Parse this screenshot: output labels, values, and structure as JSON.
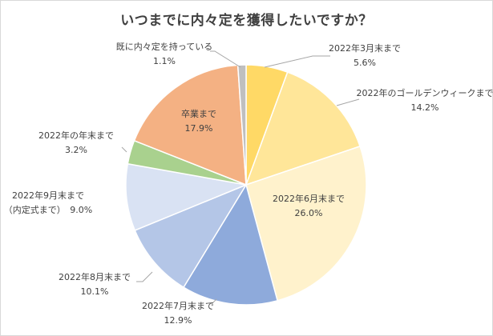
{
  "colors": {
    "text": "#404040",
    "leader": "#a6a6a6",
    "slice_edge": "#ffffff"
  },
  "chart_data": {
    "type": "pie",
    "title": "いつまでに内々定を獲得したいですか？",
    "start": "12 o'clock, clockwise",
    "slices": [
      {
        "label": "2022年3月末まで",
        "value": 5.6,
        "value_label": "5.6%",
        "color": "#ffd966"
      },
      {
        "label": "2022年のゴールデンウィークまで",
        "value": 14.2,
        "value_label": "14.2%",
        "color": "#ffe699"
      },
      {
        "label": "2022年6月末まで",
        "value": 26.0,
        "value_label": "26.0%",
        "color": "#fff2cc"
      },
      {
        "label": "2022年7月末まで",
        "value": 12.9,
        "value_label": "12.9%",
        "color": "#8eaadb"
      },
      {
        "label": "2022年8月末まで",
        "value": 10.1,
        "value_label": "10.1%",
        "color": "#b4c6e7"
      },
      {
        "label": "2022年9月末まで\n（内定式まで）",
        "value": 9.0,
        "value_label": "9.0%",
        "color": "#d9e2f3"
      },
      {
        "label": "2022年の年末まで",
        "value": 3.2,
        "value_label": "3.2%",
        "color": "#a9d18e"
      },
      {
        "label": "卒業まで",
        "value": 17.9,
        "value_label": "17.9%",
        "color": "#f4b183"
      },
      {
        "label": "既に内々定を持っている",
        "value": 1.1,
        "value_label": "1.1%",
        "color": "#bfbfbf"
      }
    ]
  }
}
